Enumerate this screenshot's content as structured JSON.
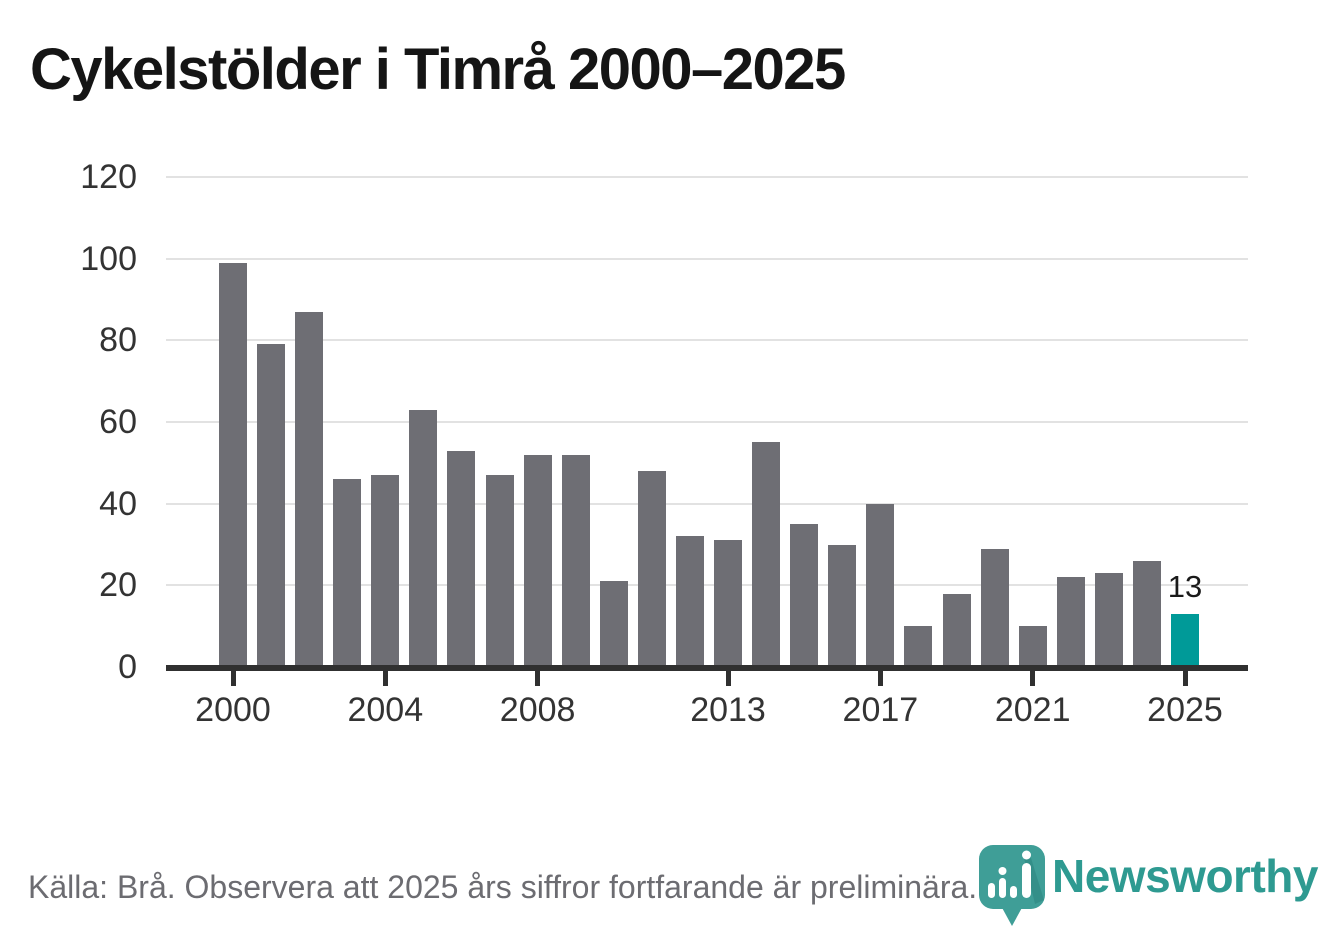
{
  "title": "Cykelstölder i Timrå 2000–2025",
  "chart_data": {
    "type": "bar",
    "title": "Cykelstölder i Timrå 2000–2025",
    "x": [
      2000,
      2001,
      2002,
      2003,
      2004,
      2005,
      2006,
      2007,
      2008,
      2009,
      2010,
      2011,
      2012,
      2013,
      2014,
      2015,
      2016,
      2017,
      2018,
      2019,
      2020,
      2021,
      2022,
      2023,
      2024,
      2025
    ],
    "values": [
      99,
      79,
      87,
      46,
      47,
      63,
      53,
      47,
      52,
      52,
      21,
      48,
      32,
      31,
      55,
      35,
      30,
      40,
      10,
      18,
      29,
      10,
      22,
      23,
      26,
      13
    ],
    "highlight_year": 2025,
    "highlight_value_label": "13",
    "x_tick_labels": [
      "2000",
      "2004",
      "2008",
      "2013",
      "2017",
      "2021",
      "2025"
    ],
    "y_ticks": [
      0,
      20,
      40,
      60,
      80,
      100,
      120
    ],
    "ylim": [
      0,
      120
    ],
    "grid": "horizontal",
    "legend": "none",
    "bar_color": "#6E6E74",
    "highlight_color": "#009A98",
    "gridline_color": "#E2E2E2",
    "axis_color": "#303030"
  },
  "footer": {
    "source_note": "Källa: Brå. Observera att 2025 års siffror fortfarande är preliminära.",
    "logo_text": "Newsworthy"
  },
  "colors": {
    "accent_teal": "#009A98",
    "logo_teal": "#3F9E97",
    "wordmark_teal": "#2E9A91",
    "bar_gray": "#6E6E74"
  }
}
